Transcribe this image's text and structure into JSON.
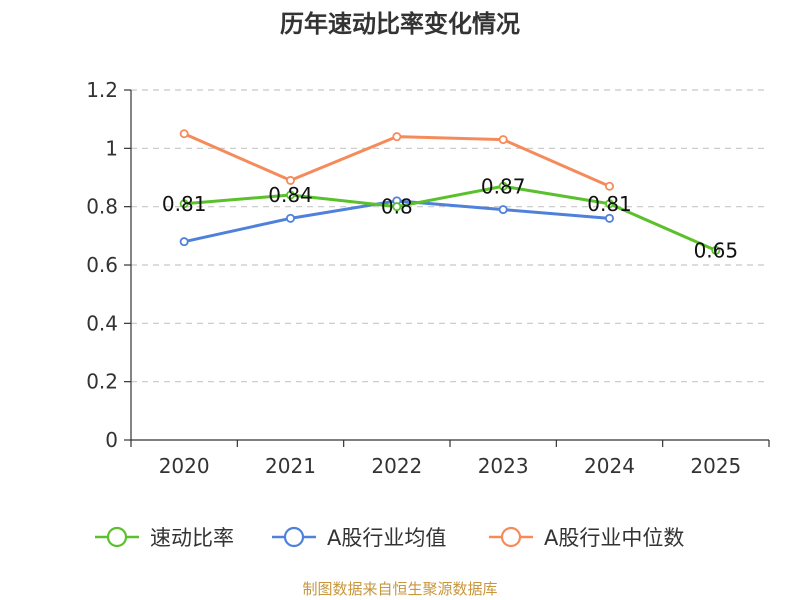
{
  "chart_data": {
    "type": "line",
    "title": "历年速动比率变化情况",
    "categories": [
      "2020",
      "2021",
      "2022",
      "2023",
      "2024",
      "2025"
    ],
    "ylim": [
      0,
      1.2
    ],
    "yticks": [
      "0",
      "0.2",
      "0.4",
      "0.6",
      "0.8",
      "1",
      "1.2"
    ],
    "yticks_values": [
      0,
      0.2,
      0.4,
      0.6,
      0.8,
      1.0,
      1.2
    ],
    "grid": true,
    "legend_position": "bottom",
    "series": [
      {
        "name": "速动比率",
        "color": "#5ac12c",
        "values": [
          0.81,
          0.84,
          0.8,
          0.87,
          0.81,
          0.65
        ],
        "labels": [
          "0.81",
          "0.84",
          "0.8",
          "0.87",
          "0.81",
          "0.65"
        ]
      },
      {
        "name": "A股行业均值",
        "color": "#4f81db",
        "values": [
          0.68,
          0.76,
          0.82,
          0.79,
          0.76,
          null
        ]
      },
      {
        "name": "A股行业中位数",
        "color": "#f58b5b",
        "values": [
          1.05,
          0.89,
          1.04,
          1.03,
          0.87,
          null
        ]
      }
    ]
  },
  "footer": {
    "source": "制图数据来自恒生聚源数据库"
  }
}
